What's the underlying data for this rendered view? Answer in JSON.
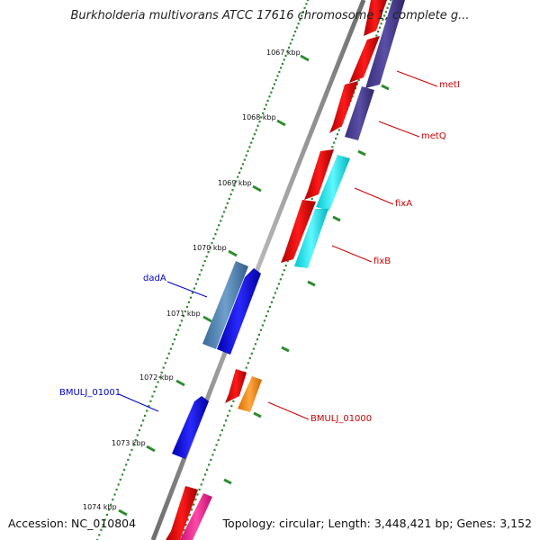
{
  "title": "Burkholderia multivorans ATCC 17616 chromosome 1, complete g...",
  "footer": {
    "accession_label": "Accession:",
    "accession": "NC_010804",
    "topology_label": "Topology:",
    "topology": "circular",
    "length_label": "Length:",
    "length": "3,448,421 bp",
    "genes_label": "Genes:",
    "genes": "3,152"
  },
  "ticks": [
    {
      "label": "1067 kbp"
    },
    {
      "label": "1068 kbp"
    },
    {
      "label": "1069 kbp"
    },
    {
      "label": "1070 kbp"
    },
    {
      "label": "1071 kbp"
    },
    {
      "label": "1072 kbp"
    },
    {
      "label": "1073 kbp"
    },
    {
      "label": "1074 kbp"
    }
  ],
  "gene_labels": [
    {
      "name": "metI",
      "color": "#cc0000"
    },
    {
      "name": "metQ",
      "color": "#cc0000"
    },
    {
      "name": "fixA",
      "color": "#cc0000"
    },
    {
      "name": "fixB",
      "color": "#cc0000"
    },
    {
      "name": "dadA",
      "color": "#0000cc"
    },
    {
      "name": "BMULJ_01001",
      "color": "#0000cc"
    },
    {
      "name": "BMULJ_01000",
      "color": "#cc0000"
    }
  ],
  "colors": {
    "backbone": "#8a8a8a",
    "tick_dots": "#2e8b2e",
    "cds_forward": "#ee0000",
    "cds_reverse_blue": "#0000ee",
    "met_genes": "#4b3f8f",
    "fix_genes": "#00e5ee",
    "dadA": "#4a7fb0",
    "BMULJ_01000": "#ff8c00",
    "pink": "#ff1493"
  }
}
